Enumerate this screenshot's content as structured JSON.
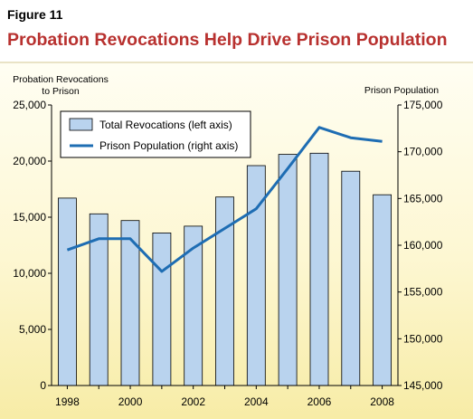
{
  "figure": {
    "label": "Figure 11",
    "title": "Probation Revocations Help Drive Prison Population"
  },
  "chart_data": {
    "type": "bar",
    "categories": [
      "1998",
      "1999",
      "2000",
      "2001",
      "2002",
      "2003",
      "2004",
      "2005",
      "2006",
      "2007",
      "2008"
    ],
    "x_tick_labels": [
      "1998",
      "2000",
      "2002",
      "2004",
      "2006",
      "2008"
    ],
    "left_axis": {
      "label_line1": "Probation Revocations",
      "label_line2": "to Prison",
      "ylim": [
        0,
        25000
      ],
      "ticks": [
        0,
        5000,
        10000,
        15000,
        20000,
        25000
      ],
      "tick_labels": [
        "0",
        "5,000",
        "10,000",
        "15,000",
        "20,000",
        "25,000"
      ]
    },
    "right_axis": {
      "label": "Prison Population",
      "ylim": [
        145000,
        175000
      ],
      "ticks": [
        145000,
        150000,
        155000,
        160000,
        165000,
        170000,
        175000
      ],
      "tick_labels": [
        "145,000",
        "150,000",
        "155,000",
        "160,000",
        "165,000",
        "170,000",
        "175,000"
      ]
    },
    "series": [
      {
        "name": "Total Revocations (left axis)",
        "type": "bar",
        "axis": "left",
        "color": "#b9d3ee",
        "values": [
          16700,
          15300,
          14700,
          13600,
          14200,
          16800,
          19600,
          20600,
          20700,
          19100,
          17000
        ]
      },
      {
        "name": "Prison Population (right axis)",
        "type": "line",
        "axis": "right",
        "color": "#1e6db3",
        "values": [
          159500,
          160700,
          160700,
          157200,
          159700,
          161800,
          163900,
          168200,
          172600,
          171500,
          171100
        ]
      }
    ],
    "legend_position": "top-left",
    "grid": false
  }
}
